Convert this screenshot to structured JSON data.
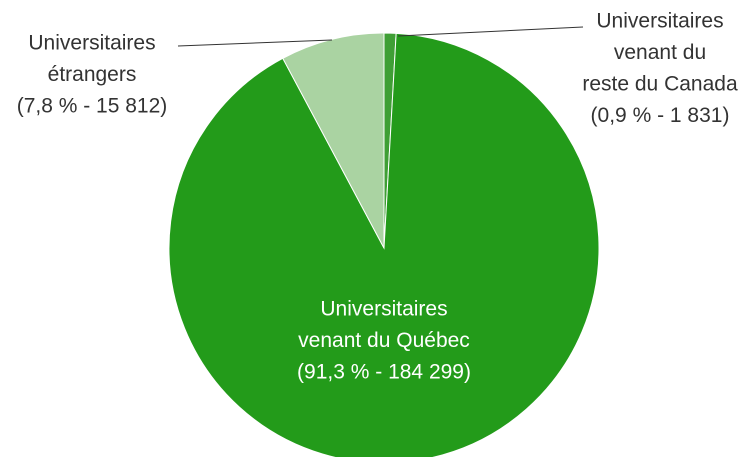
{
  "chart_data": {
    "type": "pie",
    "categories": [
      [
        "Universitaires",
        "venant du",
        "reste du Canada"
      ],
      [
        "Universitaires",
        "venant du Québec"
      ],
      [
        "Universitaires",
        "étrangers"
      ]
    ],
    "values": [
      0.9,
      91.3,
      7.8
    ],
    "value_labels": [
      "(0,9 % - 1 831)",
      "(91,3 % - 184 299)",
      "(7,8 % - 15 812)"
    ],
    "colors": [
      "#3f9f35",
      "#239b1a",
      "#aad3a2"
    ]
  }
}
